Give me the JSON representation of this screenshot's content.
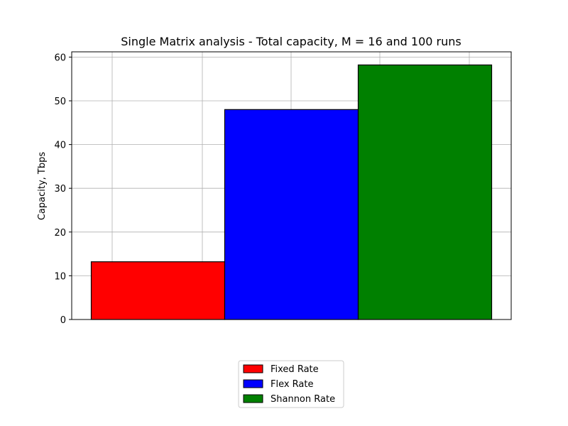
{
  "chart_data": {
    "type": "bar",
    "title": "Single Matrix analysis - Total capacity, M = 16 and 100 runs",
    "xlabel": "",
    "ylabel": "Capacity, Tbps",
    "ylim": [
      0,
      61.2
    ],
    "yticks": [
      0,
      10,
      20,
      30,
      40,
      50,
      60
    ],
    "grid": true,
    "legend_position": "bottom-center",
    "series": [
      {
        "name": "Fixed Rate",
        "value": 13.2,
        "color": "#ff0000"
      },
      {
        "name": "Flex Rate",
        "value": 48.0,
        "color": "#0000ff"
      },
      {
        "name": "Shannon Rate",
        "value": 58.2,
        "color": "#008000"
      }
    ]
  }
}
